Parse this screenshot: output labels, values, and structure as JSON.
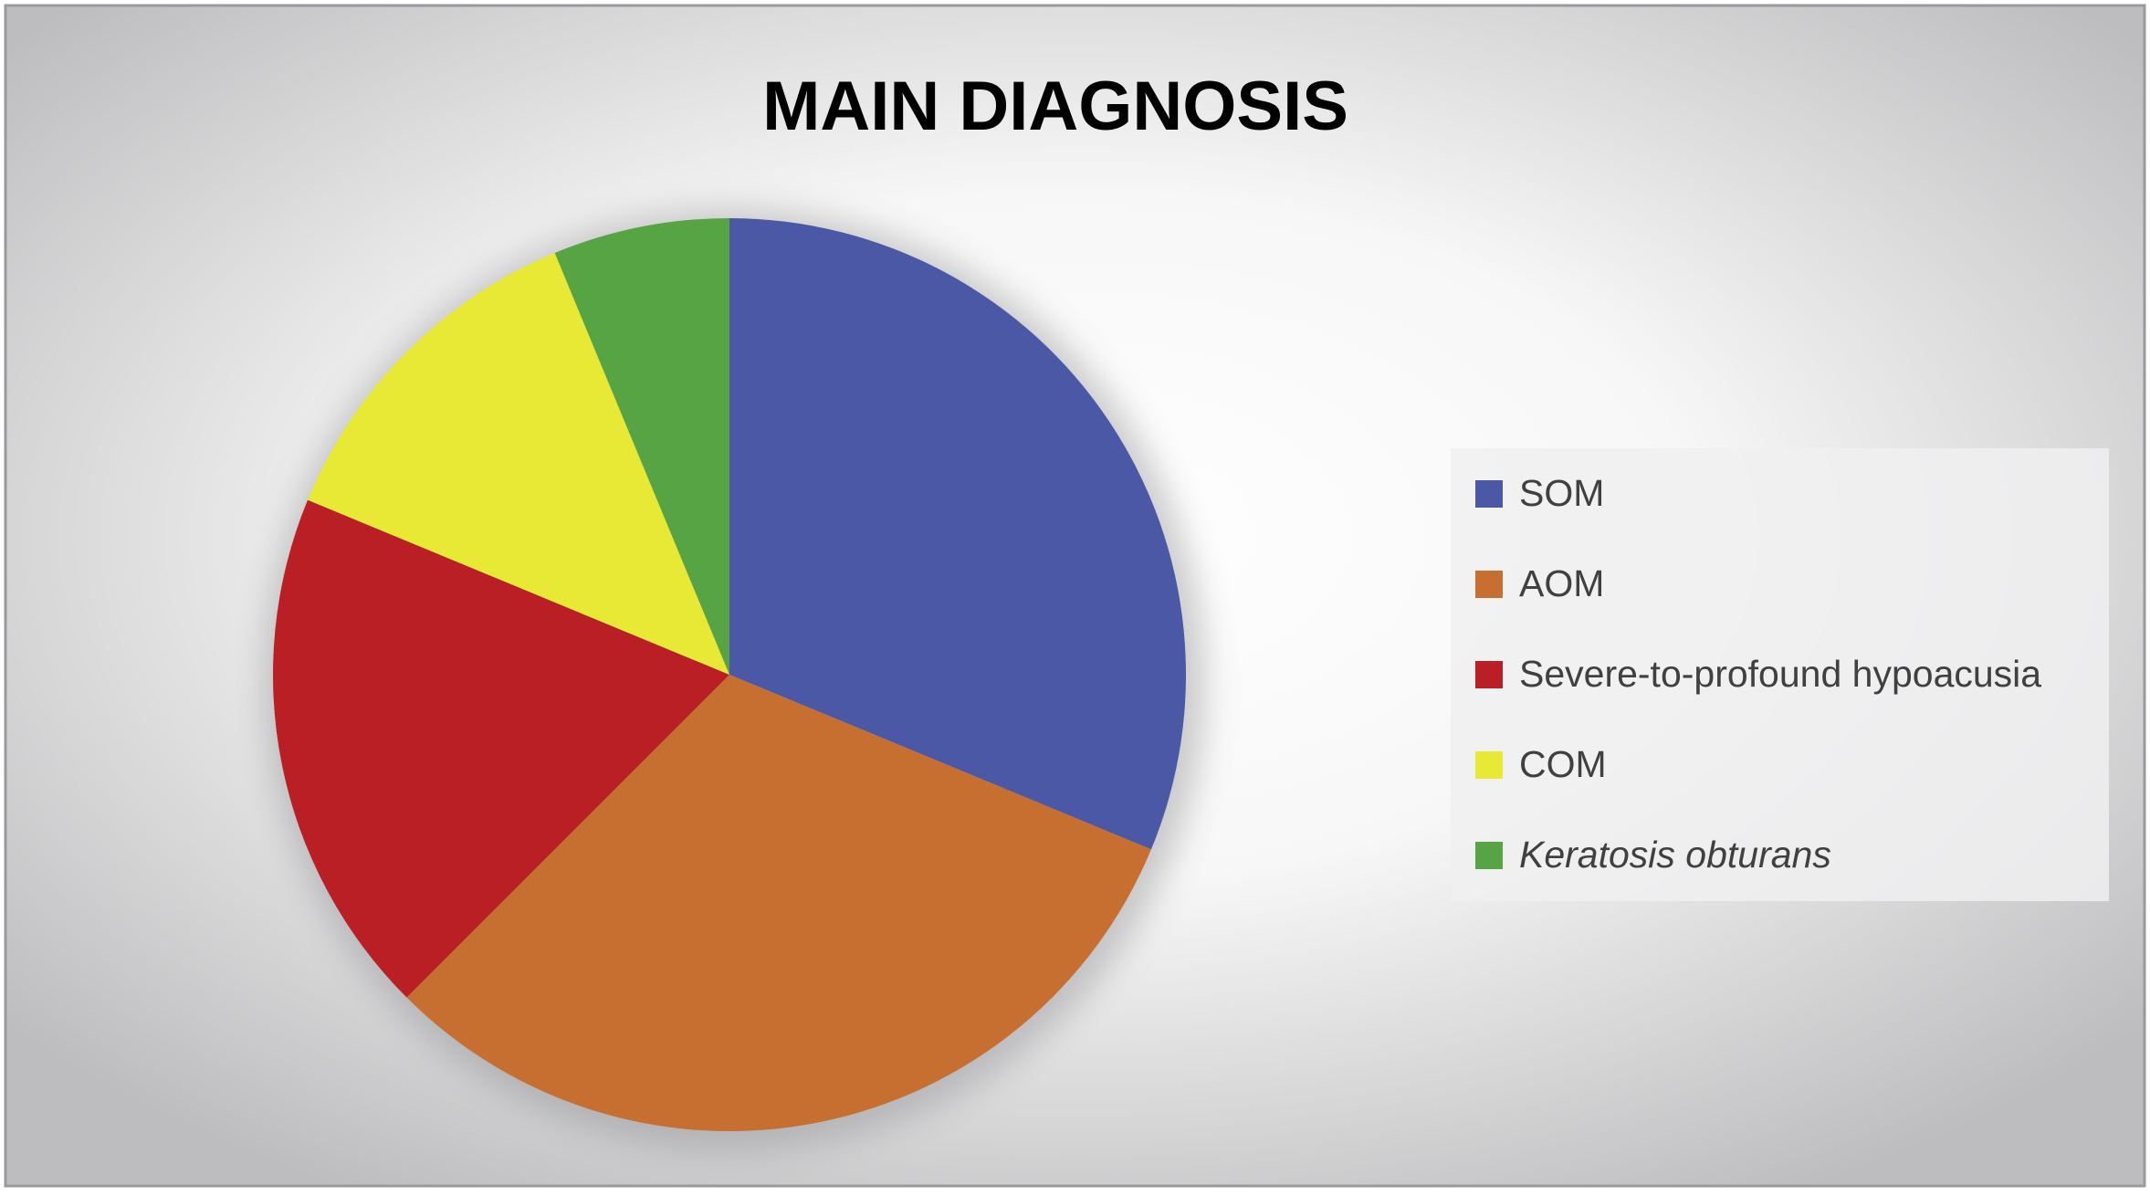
{
  "chart_data": {
    "type": "pie",
    "title": "MAIN DIAGNOSIS",
    "categories": [
      "SOM",
      "AOM",
      "Severe-to-profound hypoacusia",
      "COM",
      "Keratosis obturans"
    ],
    "values": [
      5,
      5,
      3,
      2,
      1
    ],
    "colors": [
      "#4a58a6",
      "#c66f30",
      "#b91f24",
      "#e8e934",
      "#57a444"
    ],
    "legend": "right"
  }
}
